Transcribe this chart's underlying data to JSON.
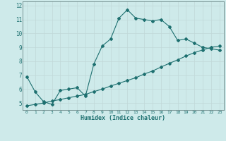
{
  "title": "",
  "xlabel": "Humidex (Indice chaleur)",
  "background_color": "#ceeaea",
  "line_color": "#1e7070",
  "grid_color": "#c0d8d8",
  "xlim": [
    -0.5,
    23.5
  ],
  "ylim": [
    4.5,
    12.3
  ],
  "xticks": [
    0,
    1,
    2,
    3,
    4,
    5,
    6,
    7,
    8,
    9,
    10,
    11,
    12,
    13,
    14,
    15,
    16,
    17,
    18,
    19,
    20,
    21,
    22,
    23
  ],
  "yticks": [
    5,
    6,
    7,
    8,
    9,
    10,
    11,
    12
  ],
  "curve1_x": [
    0,
    1,
    2,
    3,
    4,
    5,
    6,
    7,
    8,
    9,
    10,
    11,
    12,
    13,
    14,
    15,
    16,
    17,
    18,
    19,
    20,
    21,
    22,
    23
  ],
  "curve1_y": [
    6.9,
    5.8,
    5.1,
    4.9,
    5.9,
    6.0,
    6.1,
    5.5,
    7.8,
    9.1,
    9.6,
    11.1,
    11.7,
    11.1,
    11.0,
    10.9,
    11.0,
    10.5,
    9.5,
    9.6,
    9.3,
    9.0,
    8.9,
    8.8
  ],
  "curve2_x": [
    0,
    1,
    2,
    3,
    4,
    5,
    6,
    7,
    8,
    9,
    10,
    11,
    12,
    13,
    14,
    15,
    16,
    17,
    18,
    19,
    20,
    21,
    22,
    23
  ],
  "curve2_y": [
    4.8,
    4.9,
    5.0,
    5.15,
    5.25,
    5.38,
    5.5,
    5.62,
    5.82,
    6.0,
    6.22,
    6.42,
    6.62,
    6.82,
    7.08,
    7.3,
    7.58,
    7.85,
    8.1,
    8.38,
    8.62,
    8.82,
    9.0,
    9.1
  ]
}
